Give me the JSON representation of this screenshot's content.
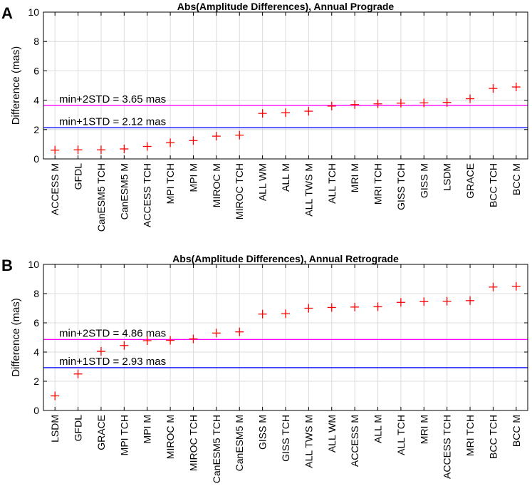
{
  "chart_data": [
    {
      "panel": "A",
      "type": "scatter",
      "title": "Abs(Amplitude Differences), Annual Prograde",
      "ylabel": "Difference (mas)",
      "xlabel": "",
      "ylim": [
        0,
        10
      ],
      "yticks": [
        0,
        2,
        4,
        6,
        8,
        10
      ],
      "grid": true,
      "categories": [
        "ACCESS M",
        "GFDL",
        "CanESM5 TCH",
        "CanESM5 M",
        "ACCESS TCH",
        "MPI TCH",
        "MPI M",
        "MIROC M",
        "MIROC TCH",
        "ALL WM",
        "ALL M",
        "ALL TWS M",
        "ALL TCH",
        "MRI M",
        "MRI TCH",
        "GISS TCH",
        "GISS M",
        "LSDM",
        "GRACE",
        "BCC TCH",
        "BCC M"
      ],
      "values": [
        0.6,
        0.62,
        0.62,
        0.68,
        0.85,
        1.1,
        1.25,
        1.55,
        1.62,
        3.1,
        3.15,
        3.25,
        3.6,
        3.7,
        3.75,
        3.8,
        3.82,
        3.85,
        4.1,
        4.8,
        4.9
      ],
      "marker_color": "#ff0000",
      "thresholds": [
        {
          "label": "min+2STD = 3.65 mas",
          "value": 3.65,
          "color": "#ff00ff"
        },
        {
          "label": "min+1STD = 2.12 mas",
          "value": 2.12,
          "color": "#0000ff"
        }
      ]
    },
    {
      "panel": "B",
      "type": "scatter",
      "title": "Abs(Amplitude Differences), Annual Retrograde",
      "ylabel": "Difference (mas)",
      "xlabel": "",
      "ylim": [
        0,
        10
      ],
      "yticks": [
        0,
        2,
        4,
        6,
        8,
        10
      ],
      "grid": true,
      "categories": [
        "LSDM",
        "GFDL",
        "GRACE",
        "MPI TCH",
        "MPI M",
        "MIROC M",
        "MIROC TCH",
        "CanESM5 TCH",
        "CanESM5 M",
        "GISS M",
        "GISS TCH",
        "ALL TWS M",
        "ALL WM",
        "ACCESS M",
        "ALL M",
        "ALL TCH",
        "MRI M",
        "ACCESS TCH",
        "MRI TCH",
        "BCC TCH",
        "BCC M"
      ],
      "values": [
        1.0,
        2.5,
        4.05,
        4.45,
        4.78,
        4.8,
        4.9,
        5.3,
        5.38,
        6.6,
        6.62,
        7.0,
        7.05,
        7.08,
        7.1,
        7.4,
        7.45,
        7.48,
        7.52,
        8.45,
        8.5
      ],
      "marker_color": "#ff0000",
      "thresholds": [
        {
          "label": "min+2STD = 4.86 mas",
          "value": 4.86,
          "color": "#ff00ff"
        },
        {
          "label": "min+1STD = 2.93 mas",
          "value": 2.93,
          "color": "#0000ff"
        }
      ]
    }
  ]
}
